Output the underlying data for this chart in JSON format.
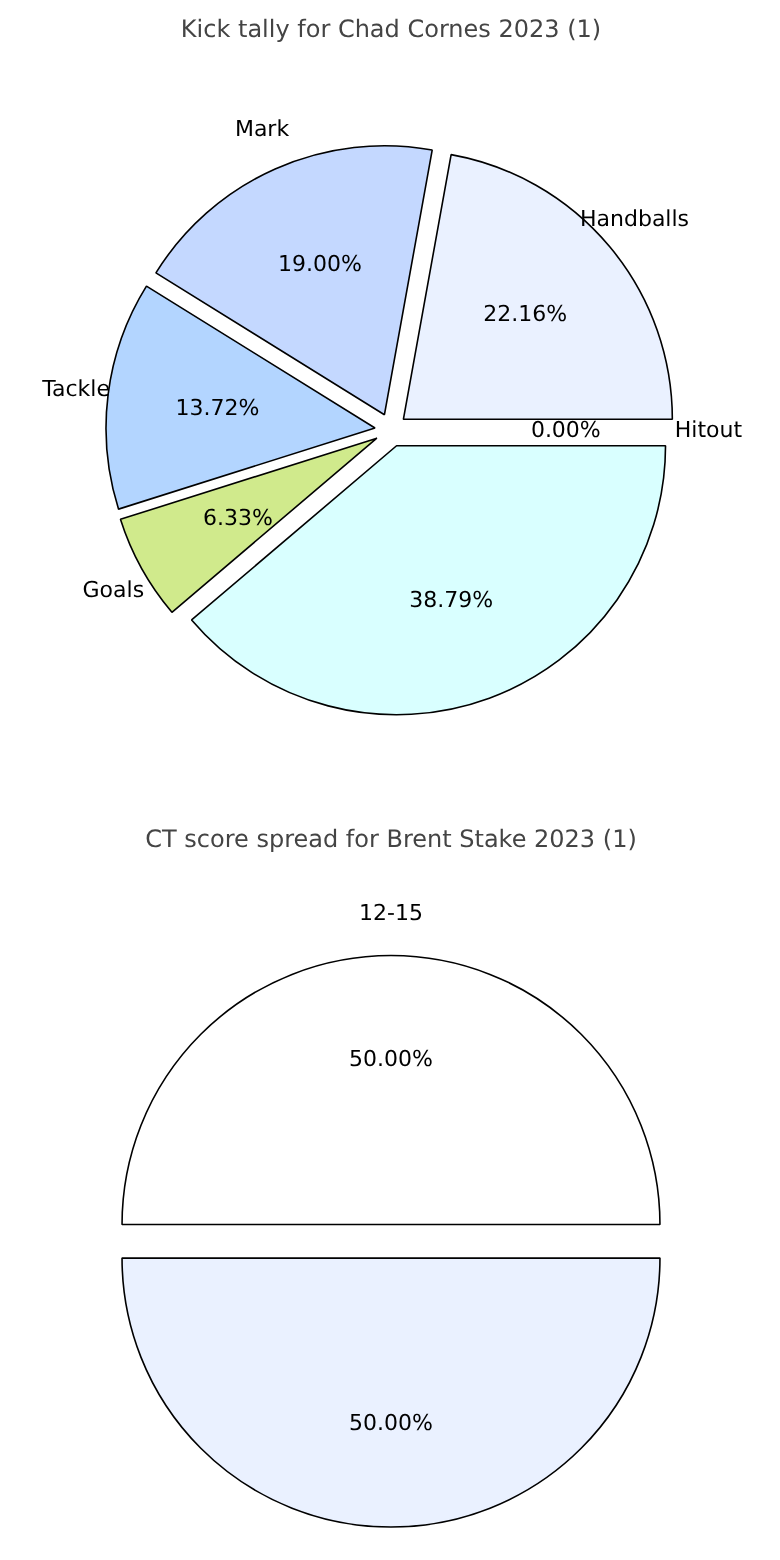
{
  "chart_data": [
    {
      "type": "pie",
      "title": "Kick tally for Chad Cornes 2023 (1)",
      "categories": [
        "Handballs",
        "Mark",
        "Tackle",
        "Goals",
        null,
        "Hitout"
      ],
      "values": [
        22.16,
        19.0,
        13.72,
        6.33,
        38.79,
        0.0
      ],
      "colors": [
        "#eaf1ff",
        "#c4d8ff",
        "#b3d5ff",
        "#d0ea8c",
        "#d9ffff",
        "#cccccc"
      ],
      "value_labels": [
        "22.16%",
        "19.00%",
        "13.72%",
        "6.33%",
        "38.79%",
        "0.00%"
      ]
    },
    {
      "type": "pie",
      "title": "CT score spread for Brent Stake 2023 (1)",
      "categories": [
        "12-15",
        null
      ],
      "values": [
        50,
        50
      ],
      "colors": [
        "#ffffff",
        "#eaf1ff"
      ],
      "value_labels": [
        "50.00%",
        "50.00%"
      ]
    }
  ]
}
